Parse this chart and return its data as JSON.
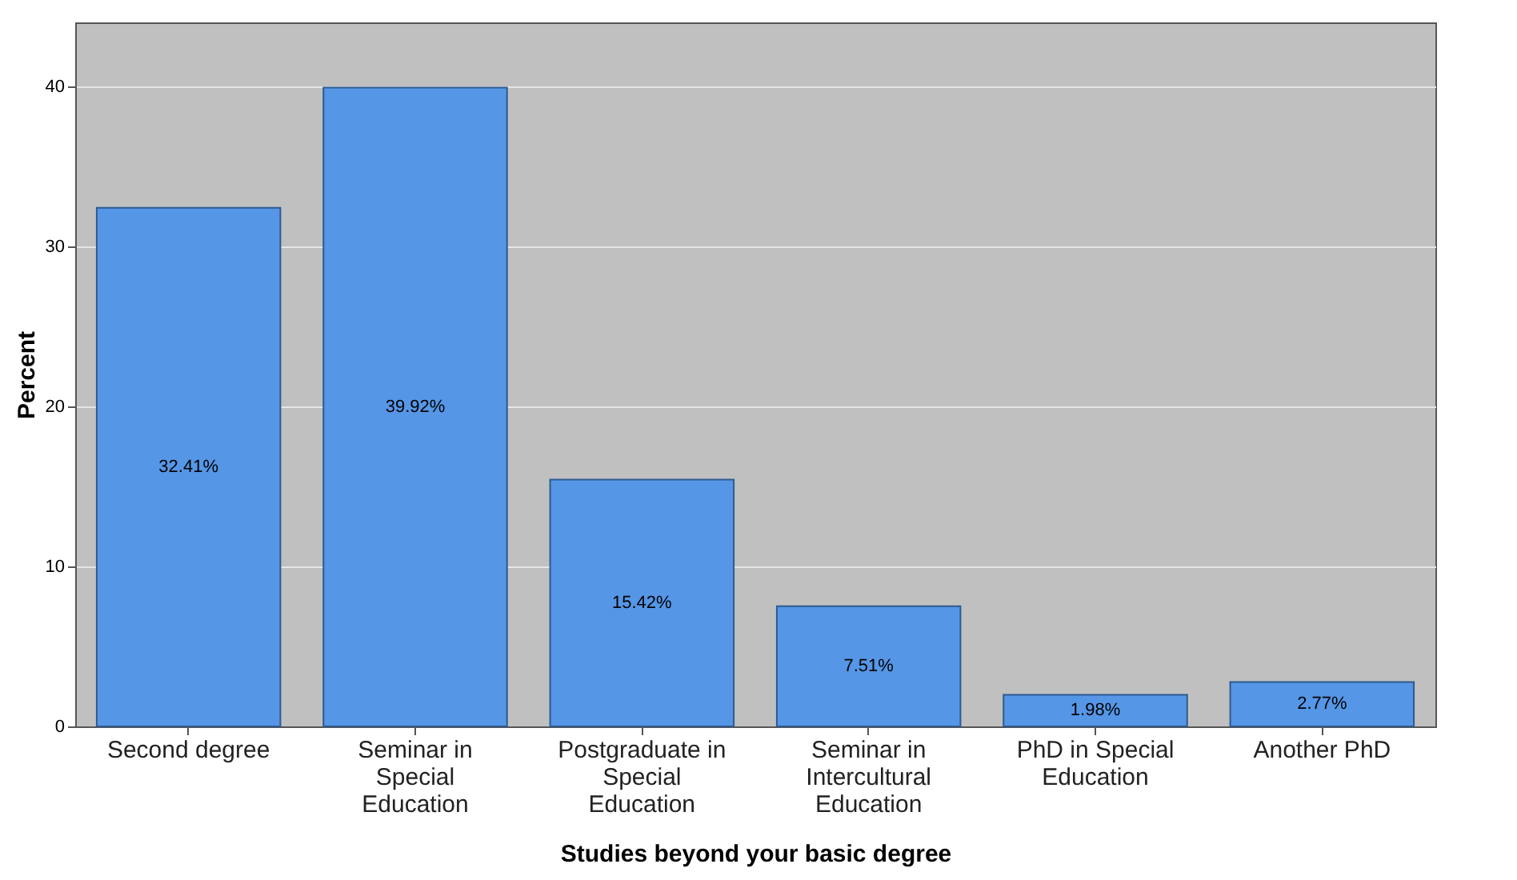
{
  "chart_data": {
    "type": "bar",
    "xlabel": "Studies beyond your basic degree",
    "ylabel": "Percent",
    "categories": [
      "Second degree",
      "Seminar in Special Education",
      "Postgraduate in Special Education",
      "Seminar in Intercultural Education",
      "PhD in Special Education",
      "Another PhD"
    ],
    "values": [
      32.41,
      39.92,
      15.42,
      7.51,
      1.98,
      2.77
    ],
    "value_labels": [
      "32.41%",
      "39.92%",
      "15.42%",
      "7.51%",
      "1.98%",
      "2.77%"
    ],
    "color": "#5596e6",
    "ylim": [
      0,
      44
    ],
    "yticks": [
      0,
      10,
      20,
      30,
      40
    ],
    "grid": "y"
  }
}
